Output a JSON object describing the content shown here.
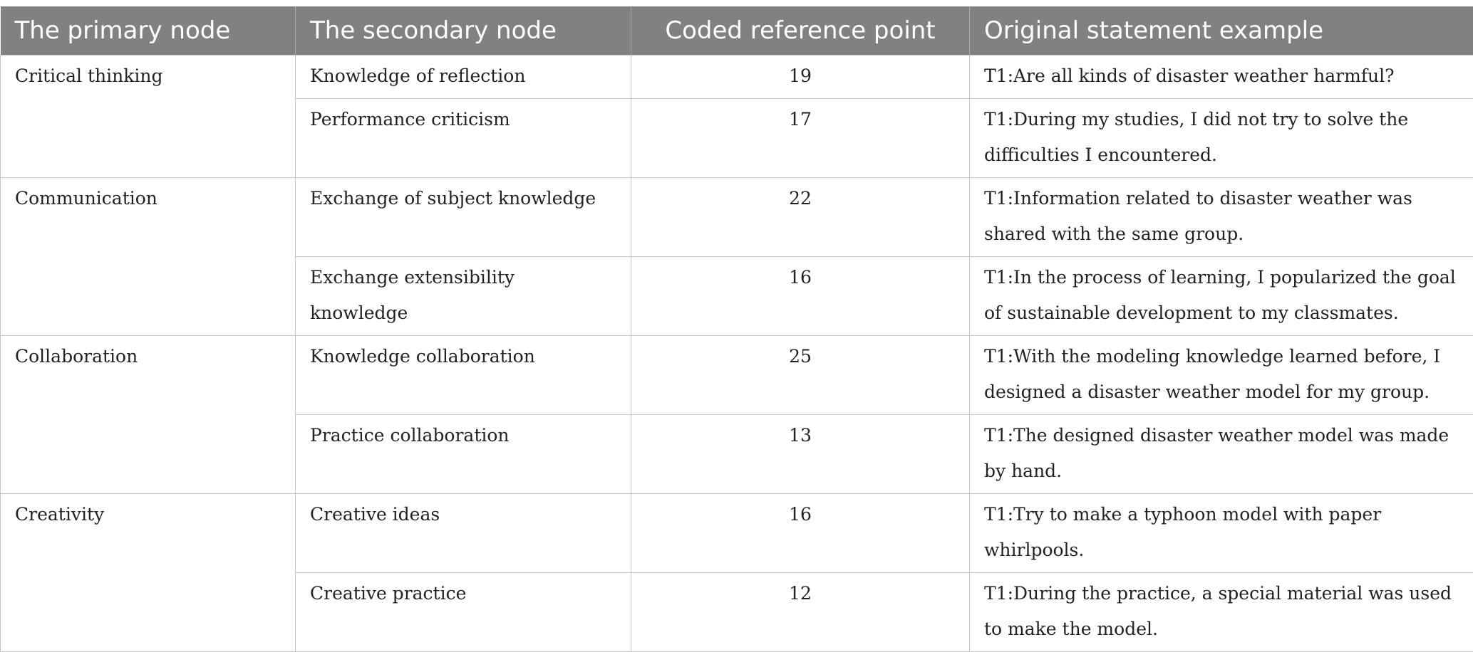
{
  "table": {
    "headers": {
      "primary": "The primary node",
      "secondary": "The secondary node",
      "count": "Coded reference point",
      "example": "Original statement example"
    },
    "groups": [
      {
        "primary": "Critical thinking",
        "rows": [
          {
            "secondary": "Knowledge of reflection",
            "count": "19",
            "example": "T1:Are all kinds of disaster weather harmful?"
          },
          {
            "secondary": "Performance criticism",
            "count": "17",
            "example": "T1:During my studies, I did not try to solve the difficulties I encountered."
          }
        ]
      },
      {
        "primary": "Communication",
        "rows": [
          {
            "secondary": "Exchange of subject knowledge",
            "count": "22",
            "example": "T1:Information related to disaster weather was shared with the same group."
          },
          {
            "secondary": "Exchange extensibility knowledge",
            "count": "16",
            "example": "T1:In the process of learning, I popularized the goal of sustainable development to my classmates."
          }
        ]
      },
      {
        "primary": "Collaboration",
        "rows": [
          {
            "secondary": "Knowledge collaboration",
            "count": "25",
            "example": "T1:With the modeling knowledge learned before, I designed a disaster weather model for my group."
          },
          {
            "secondary": "Practice collaboration",
            "count": "13",
            "example": "T1:The designed disaster weather model was made by hand."
          }
        ]
      },
      {
        "primary": "Creativity",
        "rows": [
          {
            "secondary": "Creative ideas",
            "count": "16",
            "example": "T1:Try to make a typhoon model with paper whirlpools."
          },
          {
            "secondary": "Creative practice",
            "count": "12",
            "example": "T1:During the practice, a special material was used to make the model."
          }
        ]
      }
    ]
  }
}
